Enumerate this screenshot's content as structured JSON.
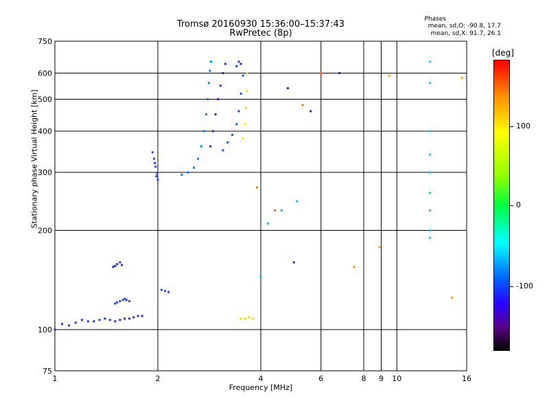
{
  "header": {
    "title_line1": "Tromsø 20160930 15:36:00–15:37:43",
    "title_line2": "RwPretec (8p)",
    "phases_head": "Phases",
    "phases_o": "mean, sd,O: -90.8, 17.7",
    "phases_x": "mean, sd,X:  91.7, 26.1"
  },
  "colorbar": {
    "unit": "[deg]",
    "ticks": [
      "100",
      "0",
      "-100"
    ],
    "tick_values": [
      100,
      0,
      -100
    ]
  },
  "chart_data": {
    "type": "scatter",
    "xlabel": "Frequency [MHz]",
    "ylabel": "Stationary phase Virtual Height [km]",
    "xscale": "log",
    "yscale": "log",
    "xlim": [
      1,
      16
    ],
    "ylim": [
      75,
      750
    ],
    "xticks": [
      1,
      2,
      4,
      6,
      8,
      9,
      10,
      16
    ],
    "xtick_labels": [
      "1",
      "2",
      "4",
      "6",
      "8",
      "9",
      "10",
      "16"
    ],
    "yticks": [
      75,
      100,
      200,
      300,
      400,
      500,
      600,
      750
    ],
    "ytick_labels": [
      "75",
      "100",
      "200",
      "300",
      "400",
      "500",
      "600",
      "750"
    ],
    "grid": true,
    "series": [
      {
        "color": "#2030e0",
        "x": [
          1.0,
          1.05,
          1.1,
          1.15,
          1.2,
          1.25,
          1.3,
          1.35,
          1.4,
          1.45,
          1.5,
          1.55,
          1.6,
          1.65,
          1.7,
          1.75,
          1.8
        ],
        "y": [
          100,
          104,
          103,
          105,
          107,
          106,
          106,
          107,
          108,
          107,
          106,
          107,
          108,
          108,
          109,
          110,
          110
        ]
      },
      {
        "color": "#2040f0",
        "x": [
          1.5,
          1.52,
          1.55,
          1.58,
          1.6,
          1.62,
          1.65
        ],
        "y": [
          120,
          121,
          122,
          123,
          124,
          123,
          122
        ]
      },
      {
        "color": "#2030e0",
        "x": [
          1.48,
          1.5,
          1.52,
          1.55,
          1.57
        ],
        "y": [
          155,
          156,
          158,
          160,
          157
        ]
      },
      {
        "color": "#3040ff",
        "x": [
          1.93,
          1.95,
          1.97,
          1.99,
          2.0,
          1.98,
          1.96
        ],
        "y": [
          345,
          330,
          312,
          298,
          285,
          292,
          320
        ]
      },
      {
        "color": "#2050ff",
        "x": [
          2.05,
          2.1,
          2.15
        ],
        "y": [
          132,
          131,
          130
        ]
      },
      {
        "color": "#0080ff",
        "x": [
          2.35,
          2.45,
          2.55,
          2.62,
          2.68,
          2.73,
          2.77,
          2.8,
          2.82,
          2.84,
          2.86
        ],
        "y": [
          295,
          300,
          310,
          330,
          360,
          400,
          450,
          500,
          560,
          610,
          650
        ]
      },
      {
        "color": "#3020d0",
        "x": [
          2.85,
          2.9,
          2.95,
          3.0,
          3.05,
          3.1,
          3.15
        ],
        "y": [
          360,
          400,
          450,
          500,
          550,
          600,
          640
        ]
      },
      {
        "color": "#1050ff",
        "x": [
          3.1,
          3.2,
          3.3,
          3.4,
          3.45,
          3.5,
          3.55
        ],
        "y": [
          350,
          370,
          390,
          420,
          460,
          520,
          590
        ]
      },
      {
        "color": "#ffe000",
        "x": [
          3.55,
          3.6,
          3.62,
          3.64,
          3.65
        ],
        "y": [
          380,
          420,
          470,
          530,
          600
        ]
      },
      {
        "color": "#2030e0",
        "x": [
          3.4,
          3.45,
          3.5
        ],
        "y": [
          630,
          650,
          640
        ]
      },
      {
        "color": "#ffcc00",
        "x": [
          3.5,
          3.6,
          3.7,
          3.8
        ],
        "y": [
          108,
          108,
          109,
          108
        ]
      },
      {
        "color": "#ff7000",
        "x": [
          3.9,
          4.4,
          5.3,
          6.0
        ],
        "y": [
          270,
          230,
          480,
          600
        ]
      },
      {
        "color": "#00c0ff",
        "x": [
          4.2,
          4.0,
          4.6,
          5.1
        ],
        "y": [
          210,
          145,
          230,
          245
        ]
      },
      {
        "color": "#2020d0",
        "x": [
          4.8,
          5.0,
          5.6,
          6.8
        ],
        "y": [
          540,
          160,
          460,
          600
        ]
      },
      {
        "color": "#00d0ff",
        "x": [
          12.5,
          12.5,
          12.5,
          12.5,
          12.5,
          12.5,
          12.5,
          12.5,
          12.5
        ],
        "y": [
          650,
          560,
          400,
          340,
          300,
          260,
          230,
          200,
          190
        ]
      },
      {
        "color": "#ffa000",
        "x": [
          7.5,
          8.9,
          9.5,
          14.5,
          15.5
        ],
        "y": [
          155,
          178,
          590,
          125,
          580
        ]
      }
    ]
  }
}
